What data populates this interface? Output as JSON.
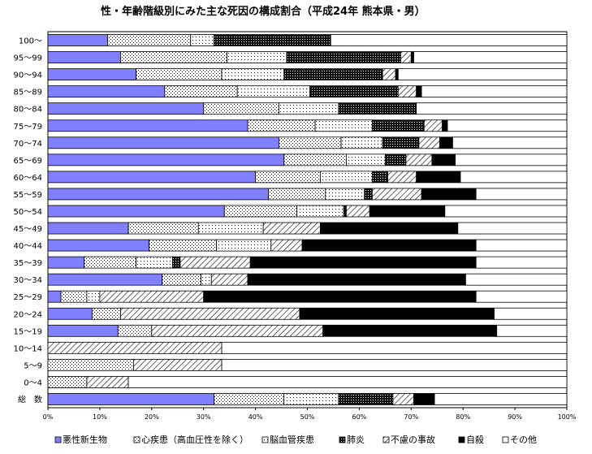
{
  "chart_data": {
    "type": "bar",
    "orientation": "horizontal",
    "stacked": "percent",
    "title": "性・年齢階級別にみた主な死因の構成割合（平成24年 熊本県・男）",
    "categories": [
      "100～",
      "95～99",
      "90～94",
      "85～89",
      "80～84",
      "75～79",
      "70～74",
      "65～69",
      "60～64",
      "55～59",
      "50～54",
      "45～49",
      "40～44",
      "35～39",
      "30～34",
      "25～29",
      "20～24",
      "15～19",
      "10～14",
      "5～9",
      "0～4",
      "総　数"
    ],
    "x_ticks": [
      "0%",
      "10%",
      "20%",
      "30%",
      "40%",
      "50%",
      "60%",
      "70%",
      "80%",
      "90%",
      "100%"
    ],
    "xlim": [
      0,
      100
    ],
    "grid": false,
    "legend_position": "bottom",
    "series": [
      {
        "name": "悪性新生物",
        "color": "#8080ff",
        "values": [
          11.5,
          14,
          17,
          22.5,
          30,
          38.5,
          44.5,
          45.5,
          40,
          42.5,
          34,
          15.5,
          19.5,
          7,
          22,
          2.5,
          8.5,
          13.5,
          0,
          0,
          0,
          32
        ]
      },
      {
        "name": "心疾患（高血圧性を除く）",
        "color": "#ffffff",
        "values": [
          16,
          20.5,
          16.5,
          14,
          14.5,
          13,
          12,
          12,
          12.5,
          11,
          14,
          13.5,
          13,
          10,
          7.5,
          5,
          5.5,
          6.5,
          0,
          16.5,
          7.5,
          13.5
        ]
      },
      {
        "name": "脳血管疾患",
        "color": "#ffffff",
        "values": [
          4.5,
          11.5,
          12,
          14,
          11.5,
          11,
          8,
          7.5,
          10,
          7.5,
          9,
          12.5,
          10.5,
          7,
          2,
          2.5,
          0,
          0,
          0,
          0,
          0,
          10.5
        ]
      },
      {
        "name": "肺炎",
        "color": "#000000",
        "values": [
          22.5,
          22,
          19,
          17,
          15,
          10,
          7,
          4,
          3,
          1.5,
          0.5,
          0,
          0,
          1.5,
          0,
          0,
          0,
          0,
          0,
          0,
          0,
          10.5
        ]
      },
      {
        "name": "不慮の事故",
        "color": "#ffffff",
        "values": [
          0,
          2,
          2.5,
          3.5,
          0,
          3.5,
          4,
          5,
          5.5,
          9.5,
          4.5,
          11,
          6,
          13.5,
          7,
          20,
          34.5,
          33,
          33.5,
          17,
          8,
          4
        ]
      },
      {
        "name": "自殺",
        "color": "#000000",
        "values": [
          0,
          0.5,
          0.5,
          1,
          0,
          1,
          2.5,
          4.5,
          8.5,
          10.5,
          14.5,
          26.5,
          33.5,
          43.5,
          42,
          52.5,
          37.5,
          33.5,
          0,
          0,
          0,
          4
        ]
      },
      {
        "name": "その他",
        "color": "#ffffff",
        "values": [
          45.5,
          29.5,
          32.5,
          28,
          29,
          23,
          22,
          21.5,
          20.5,
          17.5,
          23.5,
          21,
          17.5,
          17.5,
          19.5,
          17.5,
          14,
          13.5,
          66.5,
          66.5,
          84.5,
          25.5
        ]
      }
    ]
  }
}
